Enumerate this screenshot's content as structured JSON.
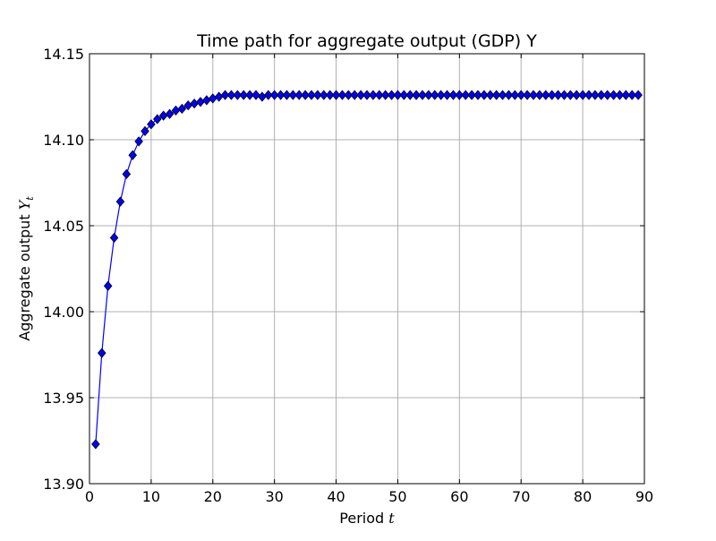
{
  "chart_data": {
    "type": "line",
    "title": "Time path for aggregate output (GDP) Y",
    "xlabel": {
      "prefix": "Period ",
      "symbol": "t"
    },
    "ylabel": {
      "prefix": "Aggregate output ",
      "symbol": "Y",
      "subscript": "t"
    },
    "xlim": [
      0,
      90
    ],
    "ylim": [
      13.9,
      14.15
    ],
    "x_ticks": [
      0,
      10,
      20,
      30,
      40,
      50,
      60,
      70,
      80,
      90
    ],
    "y_ticks": [
      13.9,
      13.95,
      14.0,
      14.05,
      14.1,
      14.15
    ],
    "x_tick_labels": [
      "0",
      "10",
      "20",
      "30",
      "40",
      "50",
      "60",
      "70",
      "80",
      "90"
    ],
    "y_tick_labels": [
      "13.90",
      "13.95",
      "14.00",
      "14.05",
      "14.10",
      "14.15"
    ],
    "grid": true,
    "marker": "diamond",
    "colors": {
      "line": "#0000ff",
      "marker_fill": "#0000ff",
      "marker_edge": "#000000",
      "grid": "#b0b0b0"
    },
    "series": [
      {
        "x": [
          1,
          2,
          3,
          4,
          5,
          6,
          7,
          8,
          9,
          10,
          11,
          12,
          13,
          14,
          15,
          16,
          17,
          18,
          19,
          20,
          21,
          22,
          23,
          24,
          25,
          26,
          27,
          28,
          29,
          30,
          31,
          32,
          33,
          34,
          35,
          36,
          37,
          38,
          39,
          40,
          41,
          42,
          43,
          44,
          45,
          46,
          47,
          48,
          49,
          50,
          51,
          52,
          53,
          54,
          55,
          56,
          57,
          58,
          59,
          60,
          61,
          62,
          63,
          64,
          65,
          66,
          67,
          68,
          69,
          70,
          71,
          72,
          73,
          74,
          75,
          76,
          77,
          78,
          79,
          80,
          81,
          82,
          83,
          84,
          85,
          86,
          87,
          88,
          89
        ],
        "y": [
          13.923,
          13.976,
          14.015,
          14.043,
          14.064,
          14.08,
          14.091,
          14.099,
          14.105,
          14.109,
          14.112,
          14.114,
          14.115,
          14.117,
          14.118,
          14.12,
          14.121,
          14.122,
          14.123,
          14.124,
          14.125,
          14.126,
          14.126,
          14.126,
          14.126,
          14.126,
          14.126,
          14.125,
          14.126,
          14.126,
          14.126,
          14.126,
          14.126,
          14.126,
          14.126,
          14.126,
          14.126,
          14.126,
          14.126,
          14.126,
          14.126,
          14.126,
          14.126,
          14.126,
          14.126,
          14.126,
          14.126,
          14.126,
          14.126,
          14.126,
          14.126,
          14.126,
          14.126,
          14.126,
          14.126,
          14.126,
          14.126,
          14.126,
          14.126,
          14.126,
          14.126,
          14.126,
          14.126,
          14.126,
          14.126,
          14.126,
          14.126,
          14.126,
          14.126,
          14.126,
          14.126,
          14.126,
          14.126,
          14.126,
          14.126,
          14.126,
          14.126,
          14.126,
          14.126,
          14.126,
          14.126,
          14.126,
          14.126,
          14.126,
          14.126,
          14.126,
          14.126,
          14.126,
          14.126
        ]
      }
    ]
  }
}
